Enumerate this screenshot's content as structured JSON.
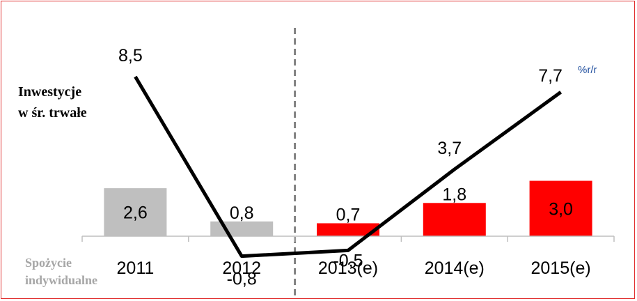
{
  "chart_data": {
    "type": "bar+line",
    "categories": [
      "2011",
      "2012",
      "2013(e)",
      "2014(e)",
      "2015(e)"
    ],
    "series": [
      {
        "name": "Spożycie indywidualne",
        "kind": "bar",
        "values": [
          2.6,
          0.8,
          0.7,
          1.8,
          3.0
        ],
        "labels": [
          "2,6",
          "0,8",
          "0,7",
          "1,8",
          "3,0"
        ],
        "colors": [
          "#bfbfbf",
          "#bfbfbf",
          "#ff0000",
          "#ff0000",
          "#ff0000"
        ]
      },
      {
        "name": "Inwestycje w śr. trwałe",
        "kind": "line",
        "values": [
          8.5,
          -0.8,
          -0.5,
          3.7,
          7.7
        ],
        "labels": [
          "8,5",
          "-0,8",
          "-0,5",
          "3,7",
          "7,7"
        ],
        "color": "#000000"
      }
    ],
    "unit_label": "%r/r",
    "line_legend": [
      "Inwestycje",
      "w śr. trwałe"
    ],
    "bar_legend": [
      "Spożycie",
      "indywidualne"
    ],
    "forecast_divider_after": "2012",
    "ylim": [
      -1,
      10
    ],
    "grid": false
  }
}
